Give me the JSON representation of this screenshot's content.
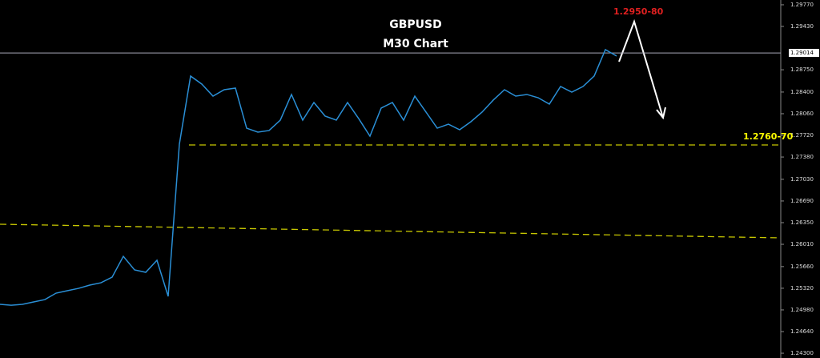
{
  "chart_data": {
    "type": "line",
    "title": "GBPUSD",
    "subtitle": "M30 Chart",
    "series": [
      {
        "name": "GBPUSD",
        "color": "#2a8fd6",
        "values": [
          1.25067,
          1.25054,
          1.25067,
          1.25105,
          1.25142,
          1.25243,
          1.25281,
          1.25318,
          1.25369,
          1.25406,
          1.25494,
          1.25821,
          1.25608,
          1.2557,
          1.25759,
          1.25193,
          1.27582,
          1.28651,
          1.28525,
          1.28336,
          1.28437,
          1.28462,
          1.27833,
          1.27771,
          1.27796,
          1.27959,
          1.28362,
          1.27959,
          1.28236,
          1.28022,
          1.27959,
          1.28236,
          1.27982,
          1.27708,
          1.28148,
          1.28236,
          1.27959,
          1.28336,
          1.28085,
          1.27833,
          1.27896,
          1.27808,
          1.27934,
          1.28085,
          1.28274,
          1.28437,
          1.28336,
          1.28362,
          1.28311,
          1.28211,
          1.28487,
          1.28399,
          1.28487,
          1.28651,
          1.29066,
          1.28965
        ]
      }
    ],
    "ylim": [
      1.29845,
      1.24225
    ],
    "yticks": [
      {
        "value": 1.2977,
        "label": "1.29770"
      },
      {
        "value": 1.2943,
        "label": "1.29430"
      },
      {
        "value": 1.2875,
        "label": "1.28750"
      },
      {
        "value": 1.284,
        "label": "1.28400"
      },
      {
        "value": 1.2806,
        "label": "1.28060"
      },
      {
        "value": 1.2772,
        "label": "1.27720"
      },
      {
        "value": 1.2738,
        "label": "1.27380"
      },
      {
        "value": 1.2703,
        "label": "1.27030"
      },
      {
        "value": 1.2669,
        "label": "1.26690"
      },
      {
        "value": 1.2635,
        "label": "1.26350"
      },
      {
        "value": 1.2601,
        "label": "1.26010"
      },
      {
        "value": 1.2566,
        "label": "1.25660"
      },
      {
        "value": 1.2532,
        "label": "1.25320"
      },
      {
        "value": 1.2498,
        "label": "1.24980"
      },
      {
        "value": 1.2464,
        "label": "1.24640"
      },
      {
        "value": 1.243,
        "label": "1.24300"
      }
    ],
    "current_price": 1.29014,
    "support": {
      "label": "1.2760-70",
      "value": 1.27569
    },
    "target": {
      "label": "1.2950-80"
    },
    "trendline": {
      "values": [
        1.26325,
        1.26111
      ]
    }
  }
}
